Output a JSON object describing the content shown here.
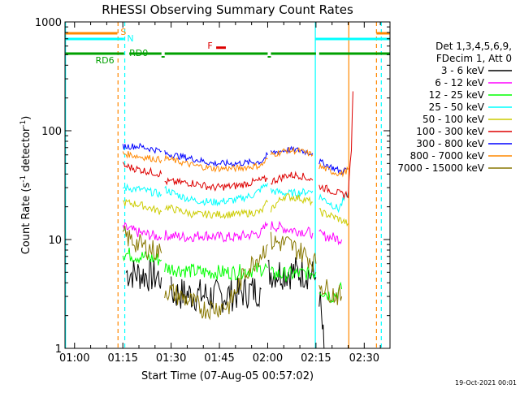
{
  "chart_data": {
    "type": "line",
    "title": "RHESSI Observing Summary Count Rates",
    "xlabel": "Start Time (07-Aug-05 00:57:02)",
    "ylabel": "Count Rate (s⁻¹ detector⁻¹)",
    "ylabel_parts": {
      "a": "Count Rate (s",
      "b": "-1",
      "c": " detector",
      "d": "-1",
      "e": ")"
    },
    "y_scale": "log",
    "ylim": [
      1,
      1000
    ],
    "xlim_minutes": [
      57.03,
      158
    ],
    "x_ticks": [
      {
        "label": "01:00",
        "min": 60
      },
      {
        "label": "01:15",
        "min": 75
      },
      {
        "label": "01:30",
        "min": 90
      },
      {
        "label": "01:45",
        "min": 105
      },
      {
        "label": "02:00",
        "min": 120
      },
      {
        "label": "02:15",
        "min": 135
      },
      {
        "label": "02:30",
        "min": 150
      }
    ],
    "y_ticks": [
      {
        "label": "1",
        "v": 1
      },
      {
        "label": "10",
        "v": 10
      },
      {
        "label": "100",
        "v": 100
      },
      {
        "label": "1000",
        "v": 1000
      }
    ],
    "legend_header": [
      "Det 1,3,4,5,6,9,",
      "FDecim 1, Att 0"
    ],
    "legend": [
      {
        "label": "3 - 6 keV",
        "color": "#000000"
      },
      {
        "label": "6 - 12 keV",
        "color": "#ff00ff"
      },
      {
        "label": "12 - 25 keV",
        "color": "#00ff00"
      },
      {
        "label": "25 - 50 keV",
        "color": "#00ffff"
      },
      {
        "label": "50 - 100 keV",
        "color": "#cccc00"
      },
      {
        "label": "100 - 300 keV",
        "color": "#dd0000"
      },
      {
        "label": "300 - 800 keV",
        "color": "#0000ff"
      },
      {
        "label": "800 - 7000 keV",
        "color": "#ff8800"
      },
      {
        "label": "7000 - 15000 keV",
        "color": "#887700"
      }
    ],
    "flag_labels": {
      "s": "S",
      "n": "N",
      "rd0": "RD0",
      "rd6": "RD6",
      "f": "F"
    },
    "timestamp": "19-Oct-2021 00:01",
    "series": [
      {
        "name": "3 - 6 keV",
        "color": "#000000",
        "noise": 0.16,
        "segments": [
          [
            [
              76,
              5
            ],
            [
              87,
              4.5
            ]
          ],
          [
            [
              90,
              3.2
            ],
            [
              105,
              3.0
            ],
            [
              118,
              3.5
            ]
          ],
          [
            [
              120,
              5
            ],
            [
              132,
              5
            ],
            [
              135,
              4.5
            ]
          ],
          [
            [
              136,
              3.2
            ],
            [
              137,
              1.5
            ],
            [
              137.5,
              1
            ]
          ]
        ]
      },
      {
        "name": "6 - 12 keV",
        "color": "#ff00ff",
        "noise": 0.05,
        "segments": [
          [
            [
              75,
              13
            ],
            [
              80,
              11.5
            ],
            [
              87,
              10.5
            ]
          ],
          [
            [
              88,
              11
            ],
            [
              95,
              10.5
            ],
            [
              100,
              11
            ],
            [
              105,
              10.5
            ],
            [
              110,
              10.5
            ],
            [
              118,
              11.5
            ],
            [
              120,
              14
            ]
          ],
          [
            [
              121,
              13.5
            ],
            [
              126,
              12.5
            ],
            [
              130,
              12
            ],
            [
              134,
              11.5
            ]
          ],
          [
            [
              136,
              11
            ],
            [
              140,
              10.5
            ],
            [
              143,
              10
            ]
          ]
        ]
      },
      {
        "name": "12 - 25 keV",
        "color": "#00ff00",
        "noise": 0.07,
        "segments": [
          [
            [
              75,
              7.5
            ],
            [
              80,
              7
            ],
            [
              87,
              6.5
            ]
          ],
          [
            [
              88,
              5.5
            ],
            [
              100,
              5
            ],
            [
              110,
              5
            ],
            [
              120,
              5.5
            ]
          ],
          [
            [
              121,
              4.8
            ],
            [
              128,
              4.8
            ],
            [
              135,
              5
            ]
          ],
          [
            [
              136,
              3.5
            ],
            [
              140,
              3
            ],
            [
              143,
              3.5
            ]
          ]
        ]
      },
      {
        "name": "25 - 50 keV",
        "color": "#00ffff",
        "noise": 0.035,
        "segments": [
          [
            [
              75,
              30
            ],
            [
              80,
              29
            ],
            [
              87,
              26
            ]
          ],
          [
            [
              88,
              29
            ],
            [
              93,
              25
            ],
            [
              97,
              23
            ],
            [
              103,
              22
            ],
            [
              110,
              23
            ],
            [
              116,
              26
            ],
            [
              120,
              33
            ]
          ],
          [
            [
              121,
              28
            ],
            [
              126,
              26.5
            ],
            [
              130,
              27
            ],
            [
              134,
              28
            ]
          ],
          [
            [
              136,
              25
            ],
            [
              139,
              22
            ],
            [
              142,
              19
            ],
            [
              145,
              27
            ]
          ]
        ]
      },
      {
        "name": "50 - 100 keV",
        "color": "#cccc00",
        "noise": 0.035,
        "segments": [
          [
            [
              75,
              22
            ],
            [
              80,
              21
            ],
            [
              87,
              18
            ]
          ],
          [
            [
              88,
              20
            ],
            [
              97,
              17
            ],
            [
              110,
              17
            ],
            [
              118,
              18
            ],
            [
              120,
              22
            ]
          ],
          [
            [
              121,
              19
            ],
            [
              125,
              25
            ],
            [
              130,
              24
            ],
            [
              134,
              22
            ]
          ],
          [
            [
              136,
              18
            ],
            [
              141,
              16
            ],
            [
              145,
              14
            ]
          ]
        ]
      },
      {
        "name": "100 - 300 keV",
        "color": "#dd0000",
        "noise": 0.035,
        "segments": [
          [
            [
              75,
              48
            ],
            [
              80,
              44
            ],
            [
              87,
              40
            ]
          ],
          [
            [
              88,
              34
            ],
            [
              97,
              33
            ],
            [
              103,
              30
            ],
            [
              110,
              31
            ],
            [
              118,
              35
            ],
            [
              120,
              36
            ]
          ],
          [
            [
              121,
              34
            ],
            [
              126,
              39
            ],
            [
              130,
              39
            ],
            [
              134,
              35
            ]
          ],
          [
            [
              136,
              31
            ],
            [
              140,
              28
            ],
            [
              143,
              26
            ],
            [
              145,
              26
            ],
            [
              146,
              70
            ],
            [
              146.5,
              230
            ]
          ]
        ]
      },
      {
        "name": "300 - 800 keV",
        "color": "#0000ff",
        "noise": 0.03,
        "segments": [
          [
            [
              75,
              72
            ],
            [
              80,
              72
            ],
            [
              87,
              65
            ]
          ],
          [
            [
              88,
              62
            ],
            [
              97,
              55
            ],
            [
              103,
              50
            ],
            [
              110,
              50
            ],
            [
              118,
              52
            ],
            [
              120,
              60
            ]
          ],
          [
            [
              121,
              62
            ],
            [
              126,
              67
            ],
            [
              130,
              66
            ],
            [
              134,
              62
            ]
          ],
          [
            [
              136,
              52
            ],
            [
              140,
              46
            ],
            [
              143,
              42
            ],
            [
              145,
              45
            ]
          ]
        ]
      },
      {
        "name": "800 - 7000 keV",
        "color": "#ff8800",
        "noise": 0.03,
        "segments": [
          [
            [
              75,
              62
            ],
            [
              80,
              58
            ],
            [
              87,
              54
            ]
          ],
          [
            [
              88,
              56
            ],
            [
              97,
              48
            ],
            [
              103,
              45
            ],
            [
              110,
              45
            ],
            [
              118,
              48
            ],
            [
              120,
              55
            ]
          ],
          [
            [
              121,
              60
            ],
            [
              126,
              66
            ],
            [
              130,
              65
            ],
            [
              134,
              60
            ]
          ],
          [
            [
              136,
              47
            ],
            [
              140,
              42
            ],
            [
              143,
              40
            ],
            [
              145,
              44
            ]
          ]
        ]
      },
      {
        "name": "7000 - 15000 keV",
        "color": "#887700",
        "noise": 0.1,
        "segments": [
          [
            [
              75,
              11
            ],
            [
              80,
              9
            ],
            [
              87,
              7.5
            ]
          ],
          [
            [
              88,
              3.5
            ],
            [
              95,
              2.8
            ],
            [
              100,
              2.3
            ],
            [
              105,
              2.4
            ],
            [
              108,
              2.5
            ],
            [
              113,
              5
            ],
            [
              118,
              7.5
            ],
            [
              120,
              9
            ]
          ],
          [
            [
              121,
              9.5
            ],
            [
              126,
              9.2
            ],
            [
              131,
              7.5
            ],
            [
              135,
              6
            ]
          ],
          [
            [
              136,
              4
            ],
            [
              140,
              3.2
            ],
            [
              143,
              3
            ]
          ]
        ]
      }
    ],
    "top_series": [
      {
        "name": "F",
        "color": "#dd0000",
        "segments": [
          [
            [
              104,
              580
            ],
            [
              107,
              580
            ]
          ]
        ]
      }
    ]
  }
}
